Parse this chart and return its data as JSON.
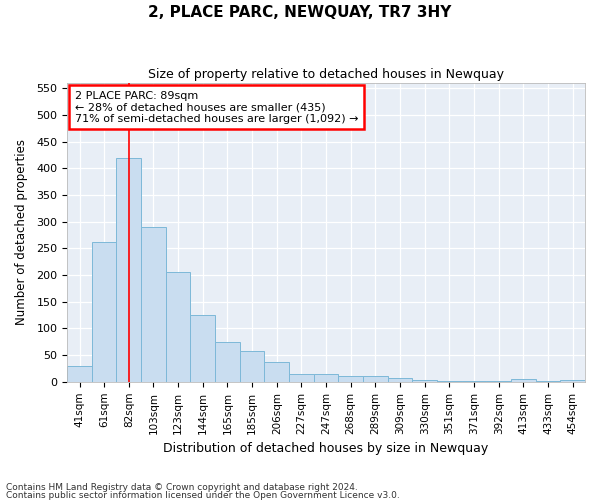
{
  "title": "2, PLACE PARC, NEWQUAY, TR7 3HY",
  "subtitle": "Size of property relative to detached houses in Newquay",
  "xlabel": "Distribution of detached houses by size in Newquay",
  "ylabel": "Number of detached properties",
  "bar_color": "#c9ddf0",
  "bar_edge_color": "#7db8d8",
  "bg_color": "#e8eef6",
  "grid_color": "#ffffff",
  "categories": [
    "41sqm",
    "61sqm",
    "82sqm",
    "103sqm",
    "123sqm",
    "144sqm",
    "165sqm",
    "185sqm",
    "206sqm",
    "227sqm",
    "247sqm",
    "268sqm",
    "289sqm",
    "309sqm",
    "330sqm",
    "351sqm",
    "371sqm",
    "392sqm",
    "413sqm",
    "433sqm",
    "454sqm"
  ],
  "values": [
    30,
    262,
    420,
    290,
    206,
    126,
    75,
    57,
    38,
    15,
    15,
    10,
    10,
    7,
    3,
    2,
    1,
    1,
    5,
    1,
    4
  ],
  "ylim": [
    0,
    560
  ],
  "yticks": [
    0,
    50,
    100,
    150,
    200,
    250,
    300,
    350,
    400,
    450,
    500,
    550
  ],
  "property_label": "2 PLACE PARC: 89sqm",
  "annotation_line1": "← 28% of detached houses are smaller (435)",
  "annotation_line2": "71% of semi-detached houses are larger (1,092) →",
  "vline_bar_index": 2,
  "footnote1": "Contains HM Land Registry data © Crown copyright and database right 2024.",
  "footnote2": "Contains public sector information licensed under the Open Government Licence v3.0."
}
